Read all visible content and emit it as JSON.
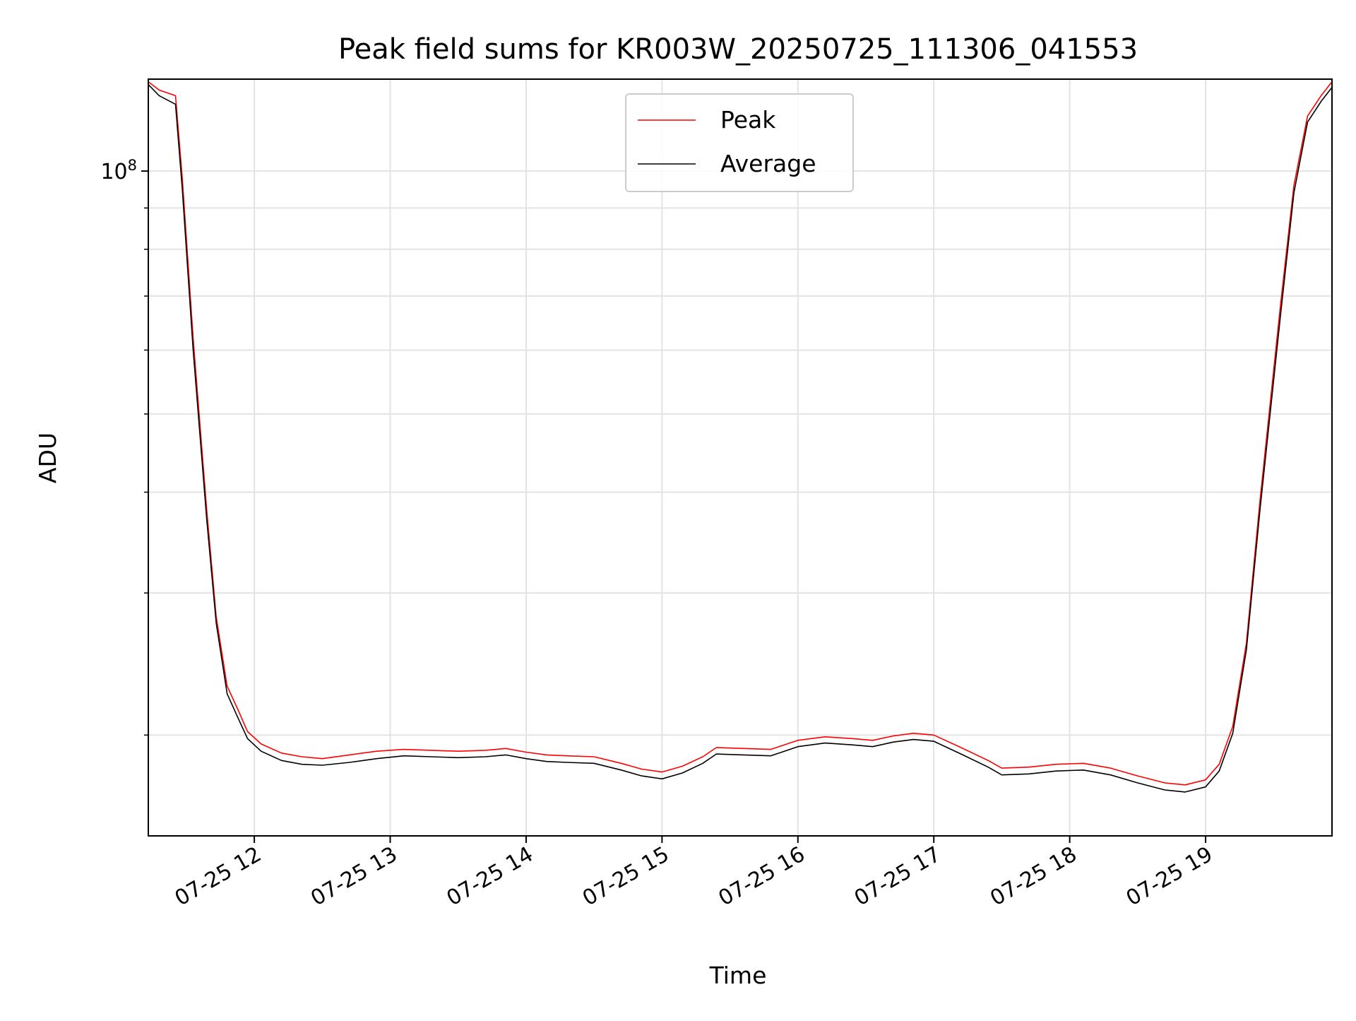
{
  "chart_data": {
    "type": "line",
    "title": "Peak field sums for KR003W_20250725_111306_041553",
    "xlabel": "Time",
    "ylabel": "ADU",
    "y_scale": "log",
    "grid": true,
    "legend_position": "top-center",
    "x_range_hours": [
      11.22,
      19.93
    ],
    "ylim": [
      15000000,
      130000000
    ],
    "x_ticks": [
      "07-25 12",
      "07-25 13",
      "07-25 14",
      "07-25 15",
      "07-25 16",
      "07-25 17",
      "07-25 18",
      "07-25 19"
    ],
    "x_tick_hours": [
      12,
      13,
      14,
      15,
      16,
      17,
      18,
      19
    ],
    "y_major_ticks": [
      {
        "label": "10",
        "exponent": "8",
        "value": 100000000
      }
    ],
    "y_minor_ticks": [
      20000000,
      30000000,
      40000000,
      50000000,
      60000000,
      70000000,
      80000000,
      90000000
    ],
    "series": [
      {
        "name": "Peak",
        "color": "#ff0000",
        "x_hours": [
          11.22,
          11.3,
          11.42,
          11.47,
          11.55,
          11.65,
          11.72,
          11.8,
          11.88,
          11.95,
          12.05,
          12.2,
          12.35,
          12.5,
          12.7,
          12.9,
          13.1,
          13.3,
          13.5,
          13.7,
          13.85,
          14.0,
          14.15,
          14.3,
          14.5,
          14.7,
          14.85,
          15.0,
          15.15,
          15.3,
          15.4,
          15.6,
          15.8,
          16.0,
          16.2,
          16.4,
          16.55,
          16.7,
          16.85,
          17.0,
          17.2,
          17.4,
          17.5,
          17.7,
          17.9,
          18.1,
          18.3,
          18.5,
          18.7,
          18.85,
          19.0,
          19.1,
          19.2,
          19.3,
          19.4,
          19.55,
          19.65,
          19.75,
          19.85,
          19.93
        ],
        "values": [
          129000000,
          126000000,
          124000000,
          98000000,
          62000000,
          38000000,
          28000000,
          23000000,
          21500000,
          20200000,
          19500000,
          19000000,
          18800000,
          18700000,
          18900000,
          19100000,
          19200000,
          19150000,
          19100000,
          19150000,
          19250000,
          19050000,
          18900000,
          18850000,
          18800000,
          18450000,
          18150000,
          18000000,
          18300000,
          18800000,
          19300000,
          19250000,
          19200000,
          19700000,
          19900000,
          19800000,
          19700000,
          19950000,
          20100000,
          20000000,
          19300000,
          18600000,
          18200000,
          18250000,
          18400000,
          18450000,
          18200000,
          17800000,
          17450000,
          17350000,
          17600000,
          18400000,
          20500000,
          26000000,
          39000000,
          68000000,
          96000000,
          117000000,
          124000000,
          129000000
        ]
      },
      {
        "name": "Average",
        "color": "#000000",
        "x_hours": [
          11.22,
          11.3,
          11.42,
          11.47,
          11.55,
          11.65,
          11.72,
          11.8,
          11.88,
          11.95,
          12.05,
          12.2,
          12.35,
          12.5,
          12.7,
          12.9,
          13.1,
          13.3,
          13.5,
          13.7,
          13.85,
          14.0,
          14.15,
          14.3,
          14.5,
          14.7,
          14.85,
          15.0,
          15.15,
          15.3,
          15.4,
          15.6,
          15.8,
          16.0,
          16.2,
          16.4,
          16.55,
          16.7,
          16.85,
          17.0,
          17.2,
          17.4,
          17.5,
          17.7,
          17.9,
          18.1,
          18.3,
          18.5,
          18.7,
          18.85,
          19.0,
          19.1,
          19.2,
          19.3,
          19.4,
          19.55,
          19.65,
          19.75,
          19.85,
          19.93
        ],
        "values": [
          128000000,
          124000000,
          121000000,
          95000000,
          60000000,
          37000000,
          27500000,
          22500000,
          21000000,
          19800000,
          19100000,
          18600000,
          18400000,
          18350000,
          18500000,
          18700000,
          18850000,
          18800000,
          18750000,
          18800000,
          18900000,
          18700000,
          18550000,
          18500000,
          18450000,
          18100000,
          17800000,
          17650000,
          17950000,
          18450000,
          18950000,
          18900000,
          18850000,
          19350000,
          19550000,
          19450000,
          19350000,
          19600000,
          19750000,
          19650000,
          18950000,
          18250000,
          17850000,
          17900000,
          18050000,
          18100000,
          17850000,
          17450000,
          17100000,
          17000000,
          17250000,
          18050000,
          20100000,
          25500000,
          38000000,
          66000000,
          94000000,
          115000000,
          122000000,
          127000000
        ]
      }
    ]
  }
}
